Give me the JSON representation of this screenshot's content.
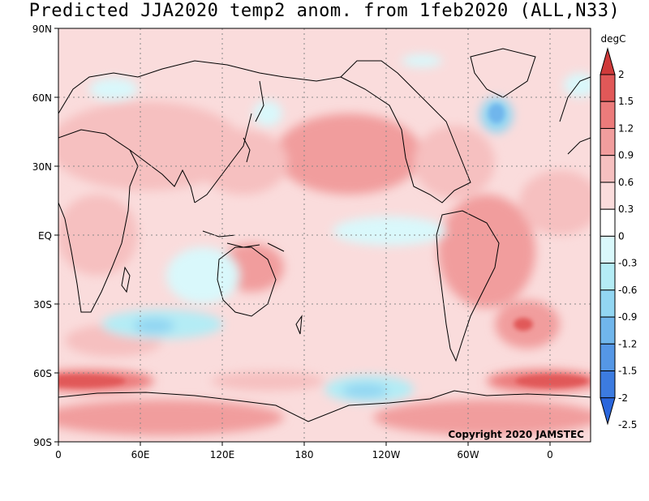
{
  "title": "Predicted JJA2020 temp2 anom. from 1feb2020 (ALL,N33)",
  "copyright": "Copyright 2020 JAMSTEC",
  "axes": {
    "lat_labels": [
      "90N",
      "60N",
      "30N",
      "EQ",
      "30S",
      "60S",
      "90S"
    ],
    "lon_labels": [
      "0",
      "60E",
      "120E",
      "180",
      "120W",
      "60W",
      "0"
    ]
  },
  "colorbar": {
    "unit": "degC",
    "levels": [
      "2",
      "1.5",
      "1.2",
      "0.9",
      "0.6",
      "0.3",
      "0",
      "-0.3",
      "-0.6",
      "-0.9",
      "-1.2",
      "-1.5",
      "-2",
      "-2.5"
    ],
    "colors": [
      "#cf3a3a",
      "#e15858",
      "#ec7b7b",
      "#f19d9d",
      "#f6c0c0",
      "#fadcdc",
      "#ffffff",
      "#d9f8fb",
      "#b4ecf5",
      "#92d6f2",
      "#70b6ec",
      "#5597e6",
      "#3c7be0",
      "#2a66dc"
    ]
  },
  "colors": {
    "background_anom": "#fadcdc",
    "warm_light": "#f6c0c0",
    "warm_mid": "#f19d9d",
    "warm_strong": "#e15858",
    "cool_light": "#d9f8fb",
    "cool_mid": "#b4ecf5",
    "cool_strong": "#70b6ec",
    "coastline": "#000000",
    "grid": "#888888"
  }
}
